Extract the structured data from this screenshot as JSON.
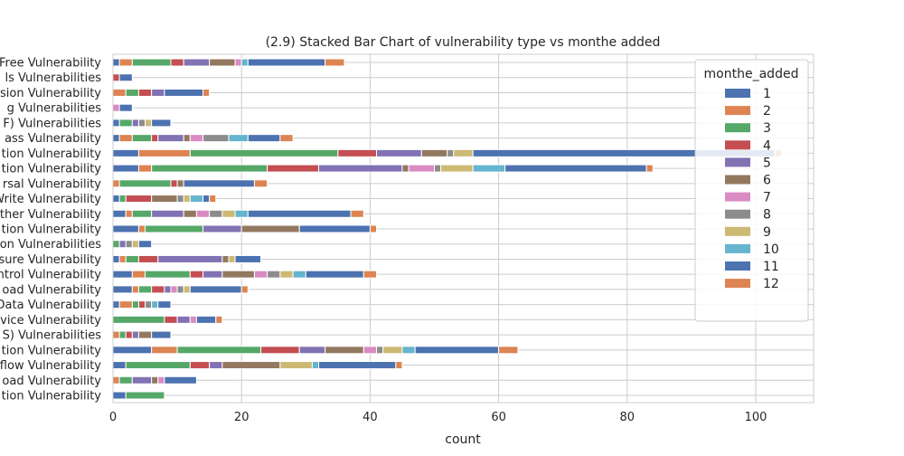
{
  "chart_data": {
    "type": "bar",
    "orientation": "horizontal",
    "stacked": true,
    "title": "(2.9) Stacked Bar Chart of  vulnerability type vs monthe added",
    "xlabel": "count",
    "ylabel": "",
    "xlim": [
      0,
      109
    ],
    "xticks": [
      0,
      20,
      40,
      60,
      80,
      100
    ],
    "grid": true,
    "legend": {
      "title": "monthe_added",
      "position": "top-right"
    },
    "categories": [
      "Free Vulnerability",
      "ls Vulnerabilities",
      "sion Vulnerability",
      "g Vulnerabilities",
      "F) Vulnerabilities",
      "ass Vulnerability",
      "tion Vulnerability",
      "tion Vulnerability",
      "rsal Vulnerability",
      "Write Vulnerability",
      "ther Vulnerability",
      "tion Vulnerability",
      "on Vulnerabilities",
      "sure Vulnerability",
      "ntrol Vulnerability",
      "oad Vulnerability",
      "Data Vulnerability",
      "vice Vulnerability",
      "S) Vulnerabilities",
      "tion Vulnerability",
      "flow Vulnerability",
      "oad Vulnerability",
      "tion Vulnerability"
    ],
    "series": [
      {
        "name": "1",
        "color": "#4c72b0",
        "values": [
          1,
          0,
          0,
          0,
          1,
          1,
          4,
          4,
          0,
          1,
          2,
          4,
          0,
          1,
          3,
          3,
          1,
          0,
          0,
          6,
          2,
          0,
          2
        ]
      },
      {
        "name": "2",
        "color": "#dd8452",
        "values": [
          2,
          0,
          2,
          0,
          0,
          2,
          8,
          2,
          1,
          0,
          1,
          1,
          0,
          1,
          2,
          1,
          2,
          0,
          1,
          4,
          0,
          1,
          0
        ]
      },
      {
        "name": "3",
        "color": "#55a868",
        "values": [
          6,
          0,
          2,
          0,
          2,
          3,
          23,
          18,
          8,
          1,
          3,
          9,
          1,
          2,
          7,
          2,
          1,
          8,
          1,
          13,
          10,
          2,
          6
        ]
      },
      {
        "name": "4",
        "color": "#c44e52",
        "values": [
          2,
          1,
          2,
          0,
          0,
          1,
          6,
          8,
          1,
          4,
          0,
          0,
          0,
          3,
          2,
          2,
          1,
          2,
          1,
          6,
          3,
          0,
          0
        ]
      },
      {
        "name": "5",
        "color": "#8172b3",
        "values": [
          4,
          0,
          2,
          0,
          1,
          4,
          7,
          13,
          0,
          0,
          5,
          6,
          1,
          10,
          3,
          1,
          0,
          2,
          1,
          4,
          2,
          3,
          0
        ]
      },
      {
        "name": "6",
        "color": "#937860",
        "values": [
          4,
          0,
          0,
          0,
          0,
          1,
          4,
          1,
          1,
          4,
          2,
          9,
          0,
          1,
          5,
          0,
          0,
          0,
          2,
          6,
          9,
          1,
          0
        ]
      },
      {
        "name": "7",
        "color": "#da8bc3",
        "values": [
          1,
          0,
          0,
          1,
          0,
          2,
          0,
          4,
          0,
          0,
          2,
          0,
          0,
          0,
          2,
          1,
          0,
          1,
          0,
          2,
          0,
          1,
          0
        ]
      },
      {
        "name": "8",
        "color": "#8c8c8c",
        "values": [
          0,
          0,
          0,
          0,
          1,
          4,
          1,
          1,
          0,
          1,
          2,
          0,
          1,
          0,
          2,
          1,
          1,
          0,
          0,
          1,
          0,
          0,
          0
        ]
      },
      {
        "name": "9",
        "color": "#ccb974",
        "values": [
          0,
          0,
          0,
          0,
          1,
          0,
          3,
          5,
          0,
          1,
          2,
          0,
          1,
          1,
          2,
          1,
          0,
          0,
          0,
          3,
          5,
          0,
          0
        ]
      },
      {
        "name": "10",
        "color": "#64b5cd",
        "values": [
          1,
          0,
          0,
          0,
          0,
          3,
          0,
          5,
          0,
          2,
          2,
          0,
          0,
          0,
          2,
          0,
          1,
          0,
          0,
          2,
          1,
          0,
          0
        ]
      },
      {
        "name": "11",
        "color": "#4c72b0",
        "values": [
          12,
          2,
          6,
          2,
          3,
          5,
          47,
          22,
          11,
          1,
          16,
          11,
          2,
          4,
          9,
          8,
          2,
          3,
          3,
          13,
          12,
          5,
          0
        ]
      },
      {
        "name": "12",
        "color": "#dd8452",
        "values": [
          3,
          0,
          1,
          0,
          0,
          2,
          1,
          1,
          2,
          1,
          2,
          1,
          0,
          0,
          2,
          1,
          0,
          1,
          0,
          3,
          1,
          0,
          0
        ]
      }
    ]
  }
}
